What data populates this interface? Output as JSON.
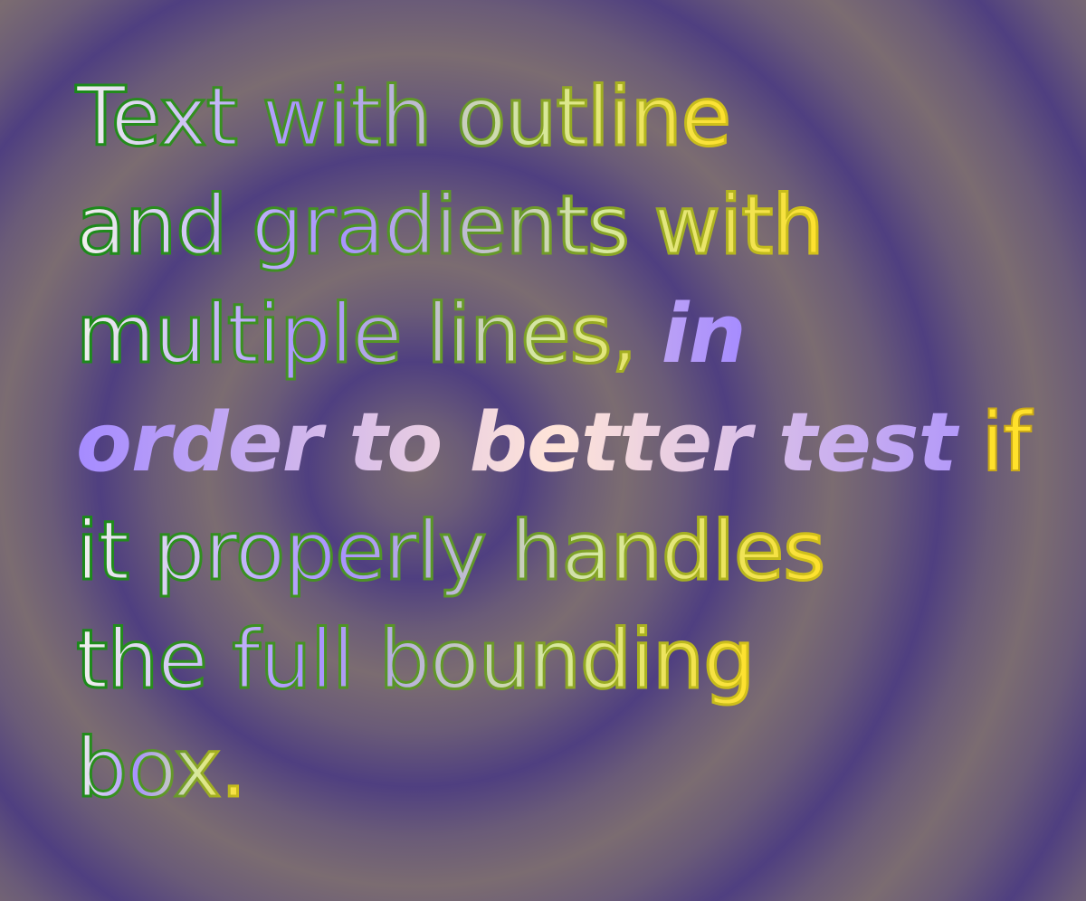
{
  "text": {
    "line1": "Text with outline",
    "line2": "and gradients with",
    "line3_plain": "multiple lines, ",
    "line3_emph": "in",
    "line4_emph": "order to better test",
    "line4_plain": " if",
    "line5": "it properly handles",
    "line6": "the full bounding",
    "line7": "box."
  },
  "colors": {
    "outline_start": "#1a8a1a",
    "outline_end": "#d6c21a",
    "fill_a": "#eae9e4",
    "fill_b": "#a892ff",
    "fill_c": "#d8cf8c",
    "fill_d": "#ffe12b",
    "emph_a": "#a58bff",
    "emph_b": "#ffe4d8"
  }
}
